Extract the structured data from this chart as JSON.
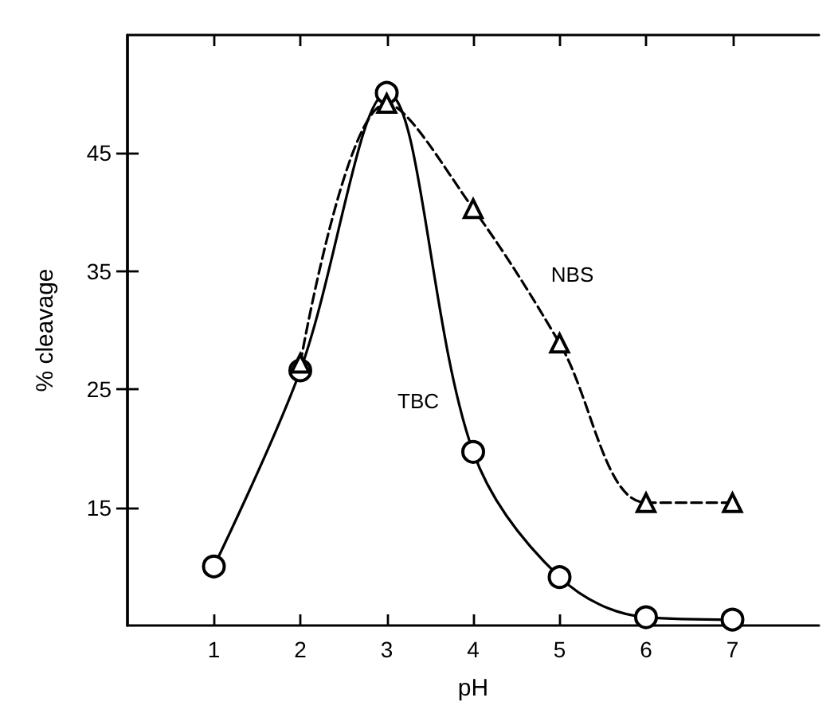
{
  "chart_data": {
    "type": "line",
    "xlabel": "pH",
    "ylabel": "% cleavage",
    "xlim": [
      0,
      8
    ],
    "xticks": [
      1,
      2,
      3,
      4,
      5,
      6,
      7
    ],
    "ylim": [
      5,
      55
    ],
    "yticks": [
      15,
      25,
      35,
      45
    ],
    "grid": false,
    "legend": false,
    "series": [
      {
        "name": "TBC",
        "color": "#000000",
        "marker": "circle",
        "line_style": "solid",
        "x": [
          1,
          2,
          3,
          4,
          5,
          6,
          7
        ],
        "values": [
          10.0,
          26.6,
          50.1,
          19.7,
          9.1,
          5.7,
          5.5
        ]
      },
      {
        "name": "NBS",
        "color": "#000000",
        "marker": "triangle",
        "line_style": "dashed",
        "x": [
          2,
          3,
          4,
          5,
          6,
          7
        ],
        "values": [
          27.2,
          49.2,
          40.3,
          28.9,
          15.4,
          15.4
        ]
      }
    ]
  }
}
